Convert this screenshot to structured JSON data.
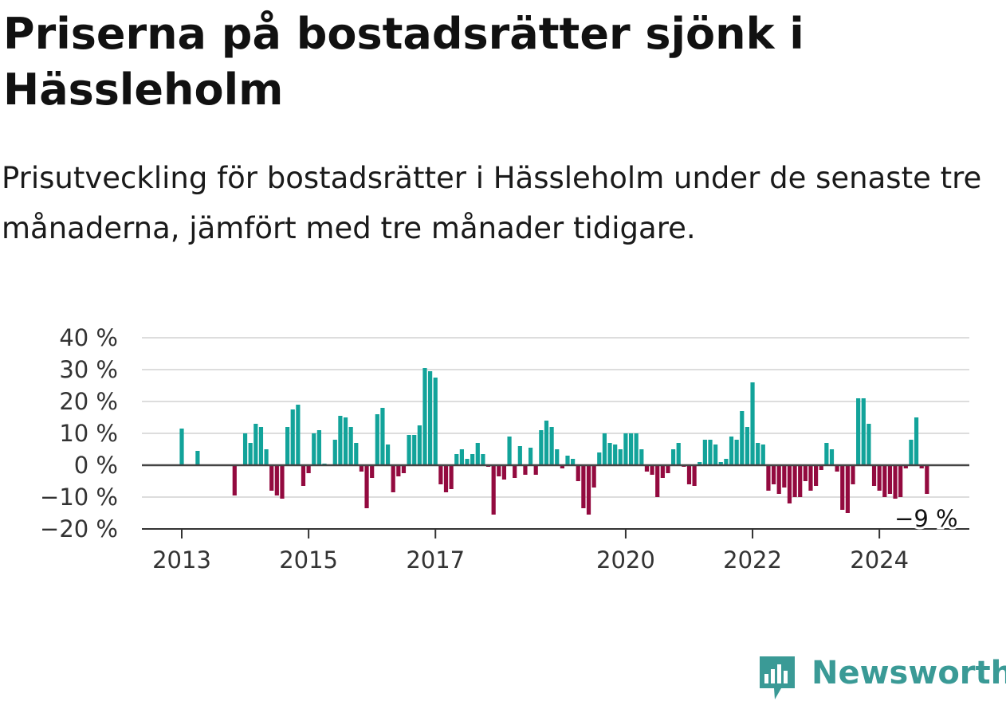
{
  "title": "Priserna på bostadsrätter sjönk i Hässleholm",
  "subtitle": "Prisutveckling för bostadsrätter i Hässleholm under de senaste tre månaderna, jämfört med tre månader tidigare.",
  "brand": {
    "name": "Newsworthy",
    "color": "#3a9a96"
  },
  "colors": {
    "positive": "#12a39a",
    "negative": "#930a3f",
    "grid": "#dddddd",
    "zero_line": "#444444"
  },
  "chart_data": {
    "type": "bar",
    "x_start": "2013-01",
    "x_step": "month",
    "ylim": [
      -20,
      40
    ],
    "yticks": [
      40,
      30,
      20,
      10,
      0,
      -10,
      -20
    ],
    "ytick_labels": [
      "40 %",
      "30 %",
      "20 %",
      "10 %",
      "0 %",
      "−10 %",
      "−20 %"
    ],
    "xtick_labels": [
      "2013",
      "2015",
      "2017",
      "2020",
      "2022",
      "2024"
    ],
    "xtick_years": [
      2013,
      2015,
      2017,
      2020,
      2022,
      2024
    ],
    "values": [
      11.5,
      null,
      null,
      4.5,
      null,
      null,
      null,
      null,
      null,
      null,
      -9.5,
      null,
      10,
      7,
      13,
      12,
      5,
      -8,
      -9.5,
      -10.5,
      12,
      17.5,
      19,
      -6.5,
      -2.5,
      10,
      11,
      0.5,
      null,
      8,
      15.5,
      15,
      12,
      7,
      -2,
      -13.5,
      -4,
      16,
      18,
      6.5,
      -8.5,
      -3.5,
      -2.5,
      9.5,
      9.5,
      12.5,
      30.5,
      29.5,
      27.5,
      -6,
      -8.5,
      -7.5,
      3.5,
      5,
      2,
      3.5,
      7,
      3.5,
      -0.5,
      -15.5,
      -3.5,
      -4.5,
      9,
      -4,
      6,
      -3,
      5.5,
      -3,
      11,
      14,
      12,
      5,
      -1,
      3,
      2,
      -5,
      -13.5,
      -15.5,
      -7,
      4,
      10,
      7,
      6.5,
      5,
      10,
      10,
      10,
      5,
      -2,
      -3,
      -10,
      -4,
      -2.5,
      5,
      7,
      -0.5,
      -6,
      -6.5,
      1,
      8,
      8,
      6.5,
      1,
      2,
      9,
      8,
      17,
      12,
      26,
      7,
      6.5,
      -8,
      -6,
      -9,
      -7,
      -12,
      -10,
      -10,
      -5,
      -8,
      -6.5,
      -1.5,
      7,
      5,
      -2,
      -14,
      -15,
      -6,
      21,
      21,
      13,
      -6.5,
      -8,
      -10,
      -9,
      -10.5,
      -10,
      -1,
      8,
      15,
      -1,
      -9
    ],
    "annotation": "−9 %"
  }
}
